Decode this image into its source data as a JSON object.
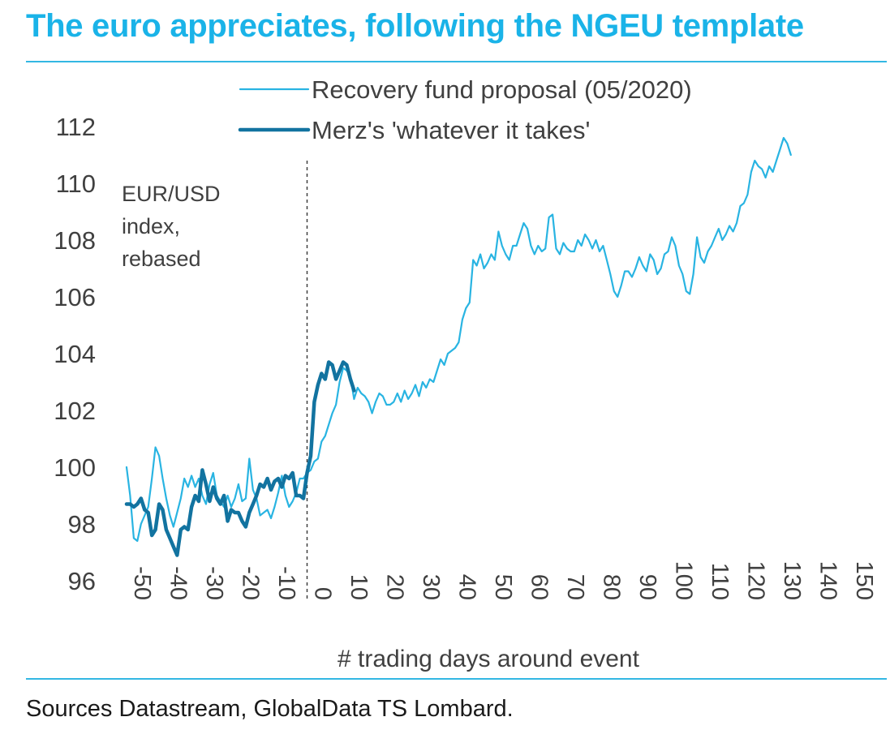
{
  "title": "The euro appreciates, following the NGEU template",
  "source": "Sources Datastream, GlobalData TS Lombard.",
  "colors": {
    "accent": "#1ab3e8",
    "series_light": "#29b4e2",
    "series_dark": "#1273a0",
    "rule": "#33b7e3",
    "text": "#404040"
  },
  "chart_data": {
    "type": "line",
    "ylabel_lines": [
      "EUR/USD",
      "index,",
      "rebased"
    ],
    "xlabel": "# trading days around event",
    "ylim": [
      96,
      112
    ],
    "xlim": [
      -50,
      150
    ],
    "y_ticks": [
      "96",
      "98",
      "100",
      "102",
      "104",
      "106",
      "108",
      "110",
      "112"
    ],
    "x_ticks": [
      "-50",
      "-40",
      "-30",
      "-20",
      "-10",
      "0",
      "10",
      "20",
      "30",
      "40",
      "50",
      "60",
      "70",
      "80",
      "90",
      "100",
      "110",
      "120",
      "130",
      "140",
      "150"
    ],
    "event_marker_x": 0,
    "legend_position": "top",
    "grid": false,
    "series": [
      {
        "name": "Recovery fund proposal (05/2020)",
        "style": "thin",
        "points": [
          [
            -50,
            100.0
          ],
          [
            -49,
            99.0
          ],
          [
            -48,
            97.5
          ],
          [
            -47,
            97.4
          ],
          [
            -46,
            98.0
          ],
          [
            -45,
            98.3
          ],
          [
            -44,
            98.6
          ],
          [
            -43,
            99.6
          ],
          [
            -42,
            100.7
          ],
          [
            -41,
            100.4
          ],
          [
            -40,
            99.6
          ],
          [
            -39,
            98.9
          ],
          [
            -38,
            98.3
          ],
          [
            -37,
            97.9
          ],
          [
            -36,
            98.4
          ],
          [
            -35,
            98.9
          ],
          [
            -34,
            99.6
          ],
          [
            -33,
            99.3
          ],
          [
            -32,
            99.7
          ],
          [
            -31,
            99.3
          ],
          [
            -30,
            99.6
          ],
          [
            -29,
            99.0
          ],
          [
            -28,
            98.7
          ],
          [
            -27,
            99.4
          ],
          [
            -26,
            99.8
          ],
          [
            -25,
            99.0
          ],
          [
            -24,
            98.8
          ],
          [
            -23,
            98.6
          ],
          [
            -22,
            99.0
          ],
          [
            -21,
            98.6
          ],
          [
            -20,
            98.9
          ],
          [
            -19,
            99.4
          ],
          [
            -18,
            98.8
          ],
          [
            -17,
            98.9
          ],
          [
            -16,
            100.3
          ],
          [
            -15,
            99.2
          ],
          [
            -14,
            98.9
          ],
          [
            -13,
            98.3
          ],
          [
            -12,
            98.4
          ],
          [
            -11,
            98.5
          ],
          [
            -10,
            98.2
          ],
          [
            -9,
            98.6
          ],
          [
            -8,
            99.1
          ],
          [
            -7,
            99.7
          ],
          [
            -6,
            99.0
          ],
          [
            -5,
            98.6
          ],
          [
            -4,
            98.8
          ],
          [
            -3,
            99.1
          ],
          [
            -2,
            99.6
          ],
          [
            -1,
            99.6
          ],
          [
            0,
            99.8
          ],
          [
            1,
            99.9
          ],
          [
            2,
            100.2
          ],
          [
            3,
            100.3
          ],
          [
            4,
            100.9
          ],
          [
            5,
            101.1
          ],
          [
            6,
            101.5
          ],
          [
            7,
            101.9
          ],
          [
            8,
            102.2
          ],
          [
            9,
            103.0
          ],
          [
            10,
            103.5
          ],
          [
            11,
            103.4
          ],
          [
            12,
            103.2
          ],
          [
            13,
            102.4
          ],
          [
            14,
            102.8
          ],
          [
            15,
            102.6
          ],
          [
            16,
            102.5
          ],
          [
            17,
            102.3
          ],
          [
            18,
            101.9
          ],
          [
            19,
            102.3
          ],
          [
            20,
            102.6
          ],
          [
            21,
            102.5
          ],
          [
            22,
            102.2
          ],
          [
            23,
            102.2
          ],
          [
            24,
            102.3
          ],
          [
            25,
            102.6
          ],
          [
            26,
            102.3
          ],
          [
            27,
            102.7
          ],
          [
            28,
            102.4
          ],
          [
            29,
            102.6
          ],
          [
            30,
            102.9
          ],
          [
            31,
            102.5
          ],
          [
            32,
            103.0
          ],
          [
            33,
            102.8
          ],
          [
            34,
            103.1
          ],
          [
            35,
            103.0
          ],
          [
            36,
            103.4
          ],
          [
            37,
            103.8
          ],
          [
            38,
            103.6
          ],
          [
            39,
            104.0
          ],
          [
            40,
            104.1
          ],
          [
            41,
            104.2
          ],
          [
            42,
            104.4
          ],
          [
            43,
            105.2
          ],
          [
            44,
            105.6
          ],
          [
            45,
            105.8
          ],
          [
            46,
            107.3
          ],
          [
            47,
            107.1
          ],
          [
            48,
            107.5
          ],
          [
            49,
            107.0
          ],
          [
            50,
            107.2
          ],
          [
            51,
            107.5
          ],
          [
            52,
            107.3
          ],
          [
            53,
            108.3
          ],
          [
            54,
            107.8
          ],
          [
            55,
            107.5
          ],
          [
            56,
            107.3
          ],
          [
            57,
            107.8
          ],
          [
            58,
            107.8
          ],
          [
            59,
            108.2
          ],
          [
            60,
            108.6
          ],
          [
            61,
            108.4
          ],
          [
            62,
            107.8
          ],
          [
            63,
            107.5
          ],
          [
            64,
            107.8
          ],
          [
            65,
            107.6
          ],
          [
            66,
            107.7
          ],
          [
            67,
            108.8
          ],
          [
            68,
            108.9
          ],
          [
            69,
            107.7
          ],
          [
            70,
            107.5
          ],
          [
            71,
            107.9
          ],
          [
            72,
            107.7
          ],
          [
            73,
            107.6
          ],
          [
            74,
            107.6
          ],
          [
            75,
            108.0
          ],
          [
            76,
            107.8
          ],
          [
            77,
            108.2
          ],
          [
            78,
            108.0
          ],
          [
            79,
            107.7
          ],
          [
            80,
            108.0
          ],
          [
            81,
            107.6
          ],
          [
            82,
            107.8
          ],
          [
            83,
            107.3
          ],
          [
            84,
            106.8
          ],
          [
            85,
            106.2
          ],
          [
            86,
            106.0
          ],
          [
            87,
            106.4
          ],
          [
            88,
            106.9
          ],
          [
            89,
            106.9
          ],
          [
            90,
            106.7
          ],
          [
            91,
            107.0
          ],
          [
            92,
            107.4
          ],
          [
            93,
            107.1
          ],
          [
            94,
            106.9
          ],
          [
            95,
            107.5
          ],
          [
            96,
            107.3
          ],
          [
            97,
            106.8
          ],
          [
            98,
            107.0
          ],
          [
            99,
            107.5
          ],
          [
            100,
            107.6
          ],
          [
            101,
            108.1
          ],
          [
            102,
            107.8
          ],
          [
            103,
            107.1
          ],
          [
            104,
            106.8
          ],
          [
            105,
            106.2
          ],
          [
            106,
            106.1
          ],
          [
            107,
            106.8
          ],
          [
            108,
            108.1
          ],
          [
            109,
            107.4
          ],
          [
            110,
            107.2
          ],
          [
            111,
            107.6
          ],
          [
            112,
            107.8
          ],
          [
            113,
            108.1
          ],
          [
            114,
            108.4
          ],
          [
            115,
            108.0
          ],
          [
            116,
            108.2
          ],
          [
            117,
            108.5
          ],
          [
            118,
            108.3
          ],
          [
            119,
            108.6
          ],
          [
            120,
            109.2
          ],
          [
            121,
            109.3
          ],
          [
            122,
            109.6
          ],
          [
            123,
            110.4
          ],
          [
            124,
            110.8
          ],
          [
            125,
            110.6
          ],
          [
            126,
            110.5
          ],
          [
            127,
            110.2
          ],
          [
            128,
            110.6
          ],
          [
            129,
            110.4
          ],
          [
            130,
            110.8
          ],
          [
            131,
            111.2
          ],
          [
            132,
            111.6
          ],
          [
            133,
            111.4
          ],
          [
            134,
            111.0
          ]
        ]
      },
      {
        "name": "Merz's 'whatever it takes'",
        "style": "thick",
        "points": [
          [
            -50,
            98.7
          ],
          [
            -49,
            98.7
          ],
          [
            -48,
            98.6
          ],
          [
            -47,
            98.7
          ],
          [
            -46,
            98.9
          ],
          [
            -45,
            98.5
          ],
          [
            -44,
            98.4
          ],
          [
            -43,
            97.6
          ],
          [
            -42,
            97.8
          ],
          [
            -41,
            98.7
          ],
          [
            -40,
            98.5
          ],
          [
            -39,
            97.8
          ],
          [
            -38,
            97.5
          ],
          [
            -37,
            97.2
          ],
          [
            -36,
            96.9
          ],
          [
            -35,
            97.8
          ],
          [
            -34,
            97.9
          ],
          [
            -33,
            97.8
          ],
          [
            -32,
            98.6
          ],
          [
            -31,
            99.0
          ],
          [
            -30,
            98.8
          ],
          [
            -29,
            99.9
          ],
          [
            -28,
            99.4
          ],
          [
            -27,
            98.8
          ],
          [
            -26,
            99.3
          ],
          [
            -25,
            98.9
          ],
          [
            -24,
            98.7
          ],
          [
            -23,
            99.0
          ],
          [
            -22,
            98.1
          ],
          [
            -21,
            98.5
          ],
          [
            -20,
            98.4
          ],
          [
            -19,
            98.4
          ],
          [
            -18,
            98.1
          ],
          [
            -17,
            97.9
          ],
          [
            -16,
            98.4
          ],
          [
            -15,
            98.7
          ],
          [
            -14,
            99.0
          ],
          [
            -13,
            99.4
          ],
          [
            -12,
            99.3
          ],
          [
            -11,
            99.6
          ],
          [
            -10,
            99.2
          ],
          [
            -9,
            99.5
          ],
          [
            -8,
            99.6
          ],
          [
            -7,
            99.3
          ],
          [
            -6,
            99.7
          ],
          [
            -5,
            99.6
          ],
          [
            -4,
            99.8
          ],
          [
            -3,
            99.0
          ],
          [
            -2,
            99.0
          ],
          [
            -1,
            98.9
          ],
          [
            0,
            99.8
          ],
          [
            1,
            100.4
          ],
          [
            2,
            102.3
          ],
          [
            3,
            102.9
          ],
          [
            4,
            103.3
          ],
          [
            5,
            103.1
          ],
          [
            6,
            103.7
          ],
          [
            7,
            103.6
          ],
          [
            8,
            103.1
          ],
          [
            9,
            103.4
          ],
          [
            10,
            103.7
          ],
          [
            11,
            103.6
          ],
          [
            12,
            103.1
          ],
          [
            13,
            102.7
          ]
        ]
      }
    ]
  }
}
